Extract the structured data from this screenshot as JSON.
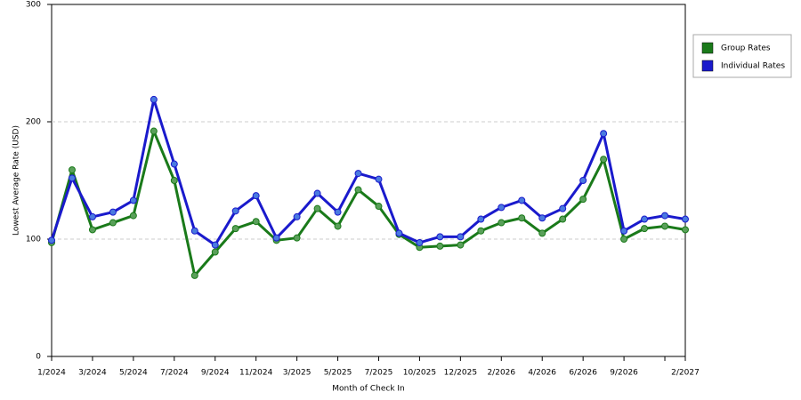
{
  "chart_data": {
    "type": "line",
    "x_label": "Month of Check In",
    "y_label": "Lowest Average Rate (USD)",
    "categories": [
      "1/2024",
      null,
      "3/2024",
      null,
      "5/2024",
      null,
      "7/2024",
      null,
      "9/2024",
      null,
      "11/2024",
      null,
      "3/2025",
      null,
      "5/2025",
      null,
      "7/2025",
      null,
      "10/2025",
      null,
      "12/2025",
      null,
      "2/2026",
      null,
      "4/2026",
      null,
      "6/2026",
      null,
      "9/2026",
      null,
      null,
      "2/2027"
    ],
    "series": [
      {
        "name": "Group Rates",
        "color": "#1a7a1a",
        "marker_color": "#5aa05a",
        "values": [
          97,
          159,
          108,
          114,
          120,
          192,
          150,
          69,
          89,
          109,
          115,
          99,
          101,
          126,
          111,
          142,
          128,
          104,
          93,
          94,
          95,
          107,
          114,
          118,
          105,
          117,
          134,
          168,
          100,
          109,
          111,
          108
        ]
      },
      {
        "name": "Individual Rates",
        "color": "#1a1acc",
        "marker_color": "#4a7ae0",
        "values": [
          99,
          152,
          119,
          123,
          133,
          219,
          164,
          107,
          95,
          124,
          137,
          101,
          119,
          139,
          123,
          156,
          151,
          105,
          97,
          102,
          102,
          117,
          127,
          133,
          118,
          126,
          150,
          190,
          107,
          117,
          120,
          117
        ]
      }
    ],
    "ylim": [
      0,
      300
    ],
    "yticks": [
      0,
      100,
      200,
      300
    ],
    "grid": true,
    "legend": "right"
  }
}
